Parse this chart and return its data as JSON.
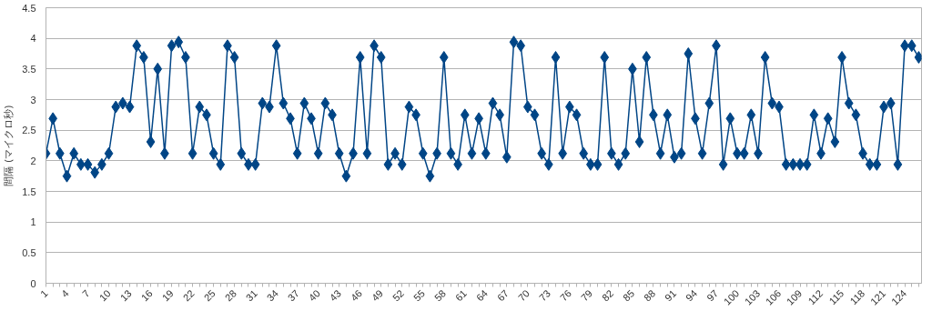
{
  "chart_data": {
    "type": "line",
    "ylabel": "間隔 (マイクロ秒)",
    "categories": [
      "1",
      null,
      null,
      "4",
      null,
      null,
      "7",
      null,
      null,
      "10",
      null,
      null,
      "13",
      null,
      null,
      "16",
      null,
      null,
      "19",
      null,
      null,
      "22",
      null,
      null,
      "25",
      null,
      null,
      "28",
      null,
      null,
      "31",
      null,
      null,
      "34",
      null,
      null,
      "37",
      null,
      null,
      "40",
      null,
      null,
      "43",
      null,
      null,
      "46",
      null,
      null,
      "49",
      null,
      null,
      "52",
      null,
      null,
      "55",
      null,
      null,
      "58",
      null,
      null,
      "61",
      null,
      null,
      "64",
      null,
      null,
      "67",
      null,
      null,
      "70",
      null,
      null,
      "73",
      null,
      null,
      "76",
      null,
      null,
      "79",
      null,
      null,
      "82",
      null,
      null,
      "85",
      null,
      null,
      "88",
      null,
      null,
      "91",
      null,
      null,
      "94",
      null,
      null,
      "97",
      null,
      null,
      "100",
      null,
      null,
      "103",
      null,
      null,
      "106",
      null,
      null,
      "109",
      null,
      null,
      "112",
      null,
      null,
      "115",
      null,
      null,
      "118",
      null,
      null,
      "121",
      null,
      null,
      "124",
      null,
      null
    ],
    "series": [
      {
        "color": "#004586",
        "values": [
          2.12,
          2.69,
          2.12,
          1.75,
          2.12,
          1.94,
          1.94,
          1.81,
          1.94,
          2.12,
          2.88,
          2.94,
          2.88,
          3.88,
          3.69,
          2.31,
          3.5,
          2.12,
          3.88,
          3.94,
          3.69,
          2.12,
          2.88,
          2.75,
          2.12,
          1.94,
          3.88,
          3.69,
          2.12,
          1.94,
          1.94,
          2.94,
          2.88,
          3.88,
          2.94,
          2.69,
          2.12,
          2.94,
          2.69,
          2.12,
          2.94,
          2.75,
          2.12,
          1.75,
          2.12,
          3.69,
          2.12,
          3.88,
          3.69,
          1.94,
          2.12,
          1.94,
          2.88,
          2.75,
          2.12,
          1.75,
          2.12,
          3.69,
          2.12,
          1.94,
          2.75,
          2.12,
          2.69,
          2.12,
          2.94,
          2.75,
          2.06,
          3.94,
          3.88,
          2.88,
          2.75,
          2.12,
          1.94,
          3.69,
          2.12,
          2.88,
          2.75,
          2.12,
          1.94,
          1.94,
          3.69,
          2.12,
          1.94,
          2.12,
          3.5,
          2.31,
          3.69,
          2.75,
          2.12,
          2.75,
          2.06,
          2.12,
          3.75,
          2.69,
          2.12,
          2.94,
          3.88,
          1.94,
          2.69,
          2.12,
          2.12,
          2.75,
          2.12,
          3.69,
          2.94,
          2.88,
          1.94,
          1.94,
          1.94,
          1.94,
          2.75,
          2.12,
          2.69,
          2.31,
          3.69,
          2.94,
          2.75,
          2.12,
          1.94,
          1.94,
          2.88,
          2.94,
          1.94,
          3.88,
          3.88,
          3.69
        ]
      }
    ],
    "ylim": [
      0,
      4.5
    ],
    "yticks": [
      0,
      0.5,
      1,
      1.5,
      2,
      2.5,
      3,
      3.5,
      4,
      4.5
    ],
    "grid": "y",
    "marker": "diamond",
    "line_style": "solid"
  }
}
